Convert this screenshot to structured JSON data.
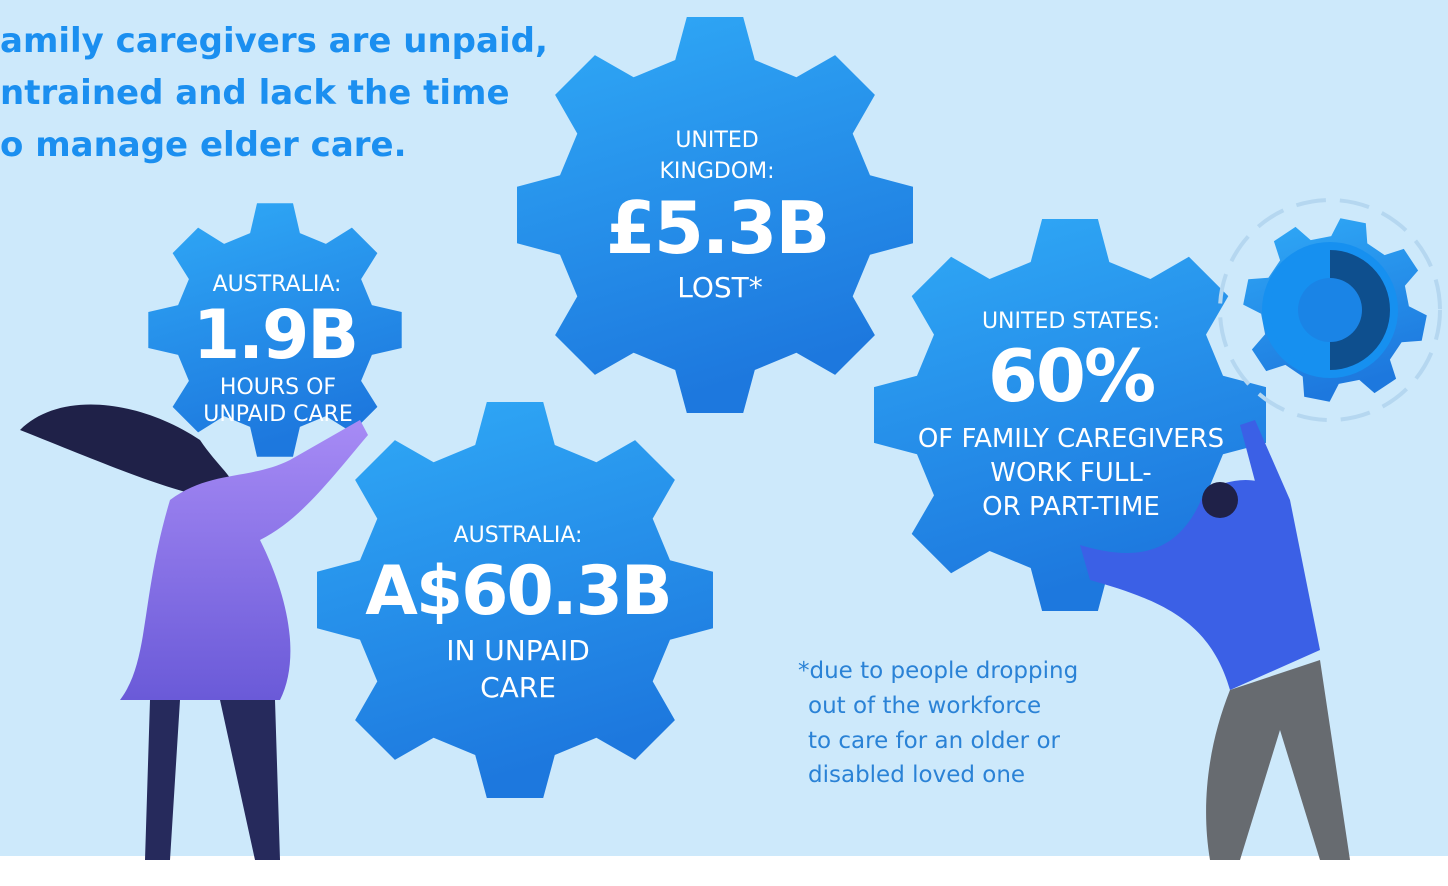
{
  "headline": [
    "amily caregivers are unpaid,",
    "ntrained and lack the time",
    "o manage elder care."
  ],
  "gears": [
    {
      "label": [
        "AUSTRALIA:"
      ],
      "value": "1.9B",
      "description": [
        "HOURS OF",
        "UNPAID CARE"
      ]
    },
    {
      "label": [
        "UNITED",
        "KINGDOM:"
      ],
      "value": "£5.3B",
      "description": [
        "LOST*"
      ]
    },
    {
      "label": [
        "AUSTRALIA:"
      ],
      "value": "A$60.3B",
      "description": [
        "IN UNPAID",
        "CARE"
      ]
    },
    {
      "label": [
        "UNITED STATES:"
      ],
      "value": "60%",
      "description": [
        "OF FAMILY CAREGIVERS",
        "WORK FULL-",
        "OR PART-TIME"
      ]
    }
  ],
  "footnote": [
    "*due to people dropping",
    "out of the workforce",
    "to care for an older or",
    "disabled loved one"
  ]
}
